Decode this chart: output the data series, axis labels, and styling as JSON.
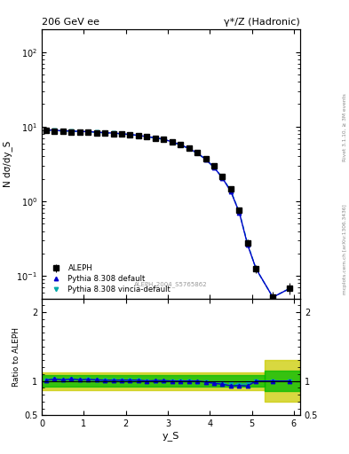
{
  "title_left": "206 GeV ee",
  "title_right": "γ*/Z (Hadronic)",
  "ylabel_main": "N dσ/dy_S",
  "ylabel_ratio": "Ratio to ALEPH",
  "xlabel": "y_S",
  "watermark": "ALEPH_2004_S5765862",
  "right_label_top": "Rivet 3.1.10, ≥ 3M events",
  "right_label_bot": "mcplots.cern.ch [arXiv:1306.3436]",
  "aleph_x": [
    0.1,
    0.3,
    0.5,
    0.7,
    0.9,
    1.1,
    1.3,
    1.5,
    1.7,
    1.9,
    2.1,
    2.3,
    2.5,
    2.7,
    2.9,
    3.1,
    3.3,
    3.5,
    3.7,
    3.9,
    4.1,
    4.3,
    4.5,
    4.7,
    4.9,
    5.1,
    5.5,
    5.9
  ],
  "aleph_y": [
    8.9,
    8.75,
    8.6,
    8.55,
    8.45,
    8.4,
    8.3,
    8.2,
    8.1,
    7.95,
    7.75,
    7.55,
    7.35,
    7.05,
    6.75,
    6.25,
    5.75,
    5.1,
    4.45,
    3.7,
    2.95,
    2.15,
    1.45,
    0.76,
    0.28,
    0.125,
    0.052,
    0.068
  ],
  "aleph_yerr": [
    0.25,
    0.18,
    0.18,
    0.18,
    0.18,
    0.18,
    0.18,
    0.18,
    0.18,
    0.18,
    0.18,
    0.18,
    0.18,
    0.18,
    0.18,
    0.18,
    0.18,
    0.18,
    0.18,
    0.18,
    0.15,
    0.12,
    0.1,
    0.06,
    0.025,
    0.015,
    0.01,
    0.012
  ],
  "pythia_x": [
    0.1,
    0.3,
    0.5,
    0.7,
    0.9,
    1.1,
    1.3,
    1.5,
    1.7,
    1.9,
    2.1,
    2.3,
    2.5,
    2.7,
    2.9,
    3.1,
    3.3,
    3.5,
    3.7,
    3.9,
    4.1,
    4.3,
    4.5,
    4.7,
    4.9,
    5.1,
    5.5,
    5.9
  ],
  "pythia_y": [
    9.0,
    9.0,
    8.75,
    8.8,
    8.6,
    8.6,
    8.45,
    8.3,
    8.2,
    8.05,
    7.85,
    7.65,
    7.35,
    7.1,
    6.8,
    6.25,
    5.75,
    5.1,
    4.45,
    3.65,
    2.85,
    2.05,
    1.35,
    0.71,
    0.26,
    0.125,
    0.052,
    0.068
  ],
  "vincia_x": [
    0.1,
    0.3,
    0.5,
    0.7,
    0.9,
    1.1,
    1.3,
    1.5,
    1.7,
    1.9,
    2.1,
    2.3,
    2.5,
    2.7,
    2.9,
    3.1,
    3.3,
    3.5,
    3.7,
    3.9,
    4.1,
    4.3,
    4.5,
    4.7,
    4.9,
    5.1,
    5.5,
    5.9
  ],
  "vincia_y": [
    8.95,
    8.95,
    8.7,
    8.75,
    8.55,
    8.55,
    8.4,
    8.25,
    8.15,
    8.0,
    7.8,
    7.6,
    7.35,
    7.05,
    6.75,
    6.2,
    5.7,
    5.05,
    4.4,
    3.65,
    2.85,
    2.08,
    1.38,
    0.72,
    0.27,
    0.124,
    0.052,
    0.068
  ],
  "ratio_pythia": [
    1.012,
    1.029,
    1.017,
    1.029,
    1.018,
    1.024,
    1.018,
    1.012,
    1.012,
    1.013,
    1.013,
    1.013,
    1.0,
    1.007,
    1.007,
    1.0,
    1.0,
    1.0,
    1.0,
    0.986,
    0.966,
    0.953,
    0.931,
    0.934,
    0.929,
    1.0,
    1.0,
    1.0
  ],
  "ratio_vincia": [
    1.006,
    1.023,
    1.012,
    1.023,
    1.012,
    1.018,
    1.012,
    1.006,
    1.006,
    1.006,
    1.006,
    1.007,
    1.0,
    1.0,
    1.0,
    0.992,
    0.991,
    0.99,
    0.989,
    0.986,
    0.966,
    0.967,
    0.952,
    0.947,
    0.964,
    0.992,
    1.0,
    1.0
  ],
  "color_aleph": "#000000",
  "color_pythia": "#0000cc",
  "color_vincia": "#00aaaa",
  "color_band_yellow": "#cccc00",
  "color_band_green": "#00bb00",
  "ylim_main": [
    0.05,
    200
  ],
  "ylim_ratio": [
    0.5,
    2.2
  ],
  "xlim": [
    0,
    6.15
  ],
  "band_x1": 0.0,
  "band_x2": 5.3,
  "band_gy1": 0.92,
  "band_gy2": 1.08,
  "band_yy1": 0.87,
  "band_yy2": 1.13,
  "last_x1": 5.3,
  "last_x2": 6.15,
  "last_gy1": 0.85,
  "last_gy2": 1.15,
  "last_yy1": 0.7,
  "last_yy2": 1.3
}
